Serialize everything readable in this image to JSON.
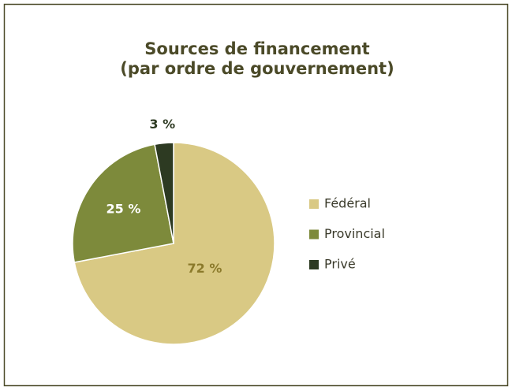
{
  "chart_data": {
    "type": "pie",
    "title": [
      "Sources de financement",
      "(par ordre de gouvernement)"
    ],
    "categories": [
      "Fédéral",
      "Provincial",
      "Privé"
    ],
    "values": [
      72,
      25,
      3
    ],
    "value_labels": [
      "72 %",
      "25 %",
      "3 %"
    ],
    "colors": [
      "#d9c984",
      "#7d8a3b",
      "#2d3a22"
    ],
    "label_colors": [
      "#8b7a2b",
      "#ffffff",
      "#2d3a22"
    ],
    "legend": "right"
  }
}
